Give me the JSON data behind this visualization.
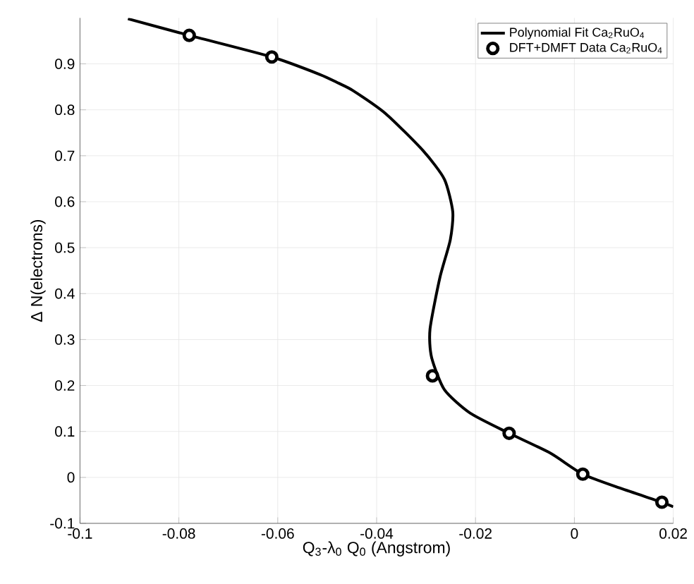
{
  "chart_data": {
    "type": "line",
    "xlabel": "Q$_{3}$-λ$_{0}$ Q$_{0}$ (Angstrom)",
    "ylabel": "Δ N(electrons)",
    "xlim": [
      -0.1,
      0.02
    ],
    "ylim": [
      -0.1,
      1.0
    ],
    "xticks": [
      -0.1,
      -0.08,
      -0.06,
      -0.04,
      -0.02,
      0,
      0.02
    ],
    "yticks": [
      -0.1,
      0,
      0.1,
      0.2,
      0.3,
      0.4,
      0.5,
      0.6,
      0.7,
      0.8,
      0.9
    ],
    "grid": true,
    "legend": "top right",
    "series": [
      {
        "name": "Polynomial Fit Ca$_{2}$RuO$_{4}$",
        "color": "#000000",
        "marker": "none",
        "line_style": "solid",
        "x": [
          -0.0903,
          -0.0779,
          -0.0612,
          -0.0515,
          -0.0477,
          -0.0448,
          -0.0382,
          -0.0306,
          -0.0263,
          -0.0246,
          -0.0251,
          -0.0272,
          -0.0292,
          -0.0289,
          -0.0263,
          -0.0211,
          -0.0132,
          -0.0049,
          0.0017,
          0.0094,
          0.0177,
          0.02
        ],
        "values": [
          0.998,
          0.962,
          0.915,
          0.877,
          0.858,
          0.842,
          0.792,
          0.711,
          0.649,
          0.578,
          0.517,
          0.435,
          0.323,
          0.262,
          0.191,
          0.14,
          0.096,
          0.053,
          0.007,
          -0.024,
          -0.054,
          -0.064
        ]
      },
      {
        "name": "DFT+DMFT Data Ca$_{2}$RuO$_{4}$",
        "type": "scatter",
        "color": "#000000",
        "marker": "circle",
        "x": [
          -0.0779,
          -0.0612,
          -0.0287,
          -0.0132,
          0.0017,
          0.0177
        ],
        "values": [
          0.962,
          0.915,
          0.221,
          0.096,
          0.007,
          -0.054
        ]
      }
    ]
  }
}
